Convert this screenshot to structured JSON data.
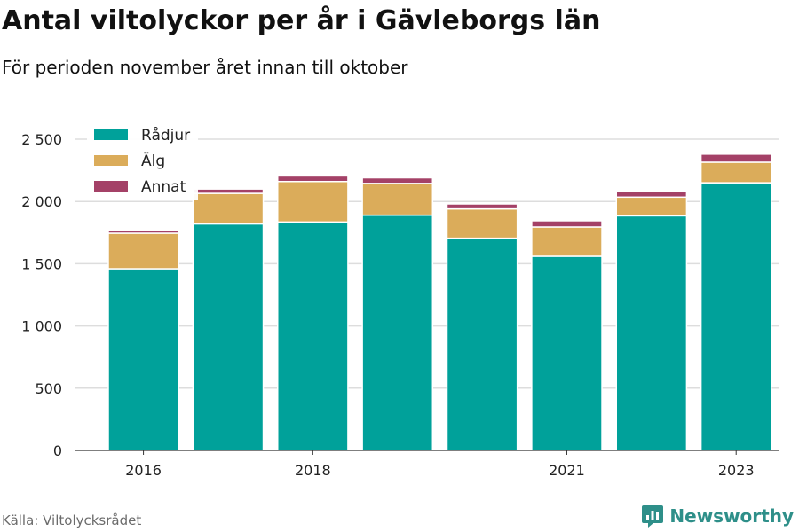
{
  "title": "Antal viltolyckor per år i Gävleborgs län",
  "subtitle": "För perioden november året innan till oktober",
  "source": "Källa: Viltolycksrådet",
  "brand": "Newsworthy",
  "brand_icon": "newsworthy-logo-icon",
  "chart_data": {
    "type": "bar",
    "stacked": true,
    "categories": [
      "2016",
      "2017",
      "2018",
      "2019",
      "2020",
      "2021",
      "2022",
      "2023"
    ],
    "x_tick_labels": [
      "2016",
      "",
      "2018",
      "",
      "",
      "2021",
      "",
      "2023"
    ],
    "series": [
      {
        "name": "Rådjur",
        "color": "#00a19a",
        "values": [
          1460,
          1820,
          1835,
          1890,
          1705,
          1560,
          1885,
          2150
        ]
      },
      {
        "name": "Älg",
        "color": "#dbac5a",
        "values": [
          285,
          245,
          325,
          255,
          235,
          235,
          150,
          165
        ]
      },
      {
        "name": "Annat",
        "color": "#a44167",
        "values": [
          20,
          35,
          45,
          45,
          40,
          50,
          50,
          65
        ]
      }
    ],
    "ylim": [
      0,
      2500
    ],
    "yticks": [
      0,
      500,
      1000,
      1500,
      2000,
      2500
    ],
    "ytick_labels": [
      "0",
      "500",
      "1 000",
      "1 500",
      "2 000",
      "2 500"
    ],
    "grid": true,
    "legend_position": "top-left"
  }
}
